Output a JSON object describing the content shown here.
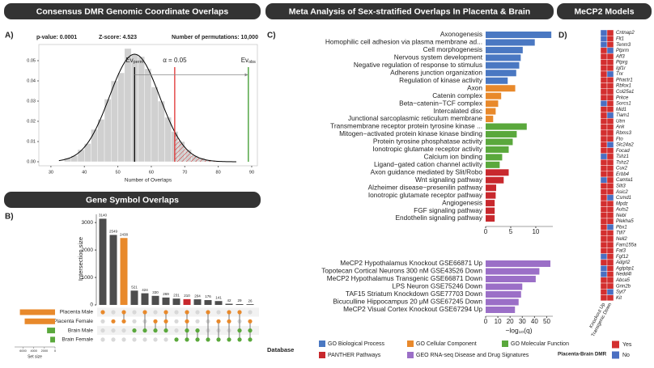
{
  "chart_data": [
    {
      "type": "histogram",
      "panel_label": "A)",
      "header": "Consensus DMR Genomic Coordinate Overlaps",
      "stats": [
        "p-value:  0.0001",
        "Z-score:  4.523",
        "Number of permutations: 10,000"
      ],
      "bins": [
        34,
        36,
        38,
        40,
        42,
        44,
        46,
        48,
        50,
        52,
        54,
        56,
        58,
        60,
        62,
        64,
        66,
        68,
        70,
        72,
        74,
        76,
        78
      ],
      "values": [
        0.002,
        0.003,
        0.006,
        0.009,
        0.016,
        0.021,
        0.031,
        0.04,
        0.044,
        0.056,
        0.053,
        0.052,
        0.046,
        0.037,
        0.03,
        0.022,
        0.015,
        0.01,
        0.006,
        0.003,
        0.002,
        0.001
      ],
      "color": "#d0d0d0",
      "curve": {
        "mean": 55,
        "sd": 7.5,
        "color": "#000000"
      },
      "annotations": [
        {
          "text": "Ev",
          "subscript": "perm",
          "x": 55,
          "color": "#000000"
        },
        {
          "text": "α = 0.05",
          "x": 67,
          "color": "#e03030"
        },
        {
          "text": "Ev",
          "subscript": "obs",
          "x": 89,
          "color": "#3a9a2a"
        }
      ],
      "xlabel": "Number of Overlaps",
      "xlim": [
        26.4,
        91.7
      ],
      "xticks": [
        30,
        40,
        50,
        60,
        70,
        80,
        90
      ],
      "ylim": [
        -0.002,
        0.058
      ],
      "yticks": [
        {
          "value": 0,
          "label": "0.00"
        },
        {
          "value": 0.01,
          "label": "0.01"
        },
        {
          "value": 0.02,
          "label": "0.02"
        },
        {
          "value": 0.03,
          "label": "0.03"
        },
        {
          "value": 0.04,
          "label": "0.04"
        },
        {
          "value": 0.05,
          "label": "0.05"
        }
      ]
    },
    {
      "type": "upset",
      "panel_label": "B)",
      "header": "Gene Symbol Overlaps",
      "ylabel": "Intersection size",
      "values": [
        3140,
        2549,
        2438,
        521,
        424,
        330,
        269,
        231,
        210,
        204,
        176,
        141,
        42,
        29,
        26
      ],
      "colors": [
        "#4d4d4d",
        "#4d4d4d",
        "#e8892b",
        "#4d4d4d",
        "#4d4d4d",
        "#4d4d4d",
        "#4d4d4d",
        "#4d4d4d",
        "#c8282d",
        "#4d4d4d",
        "#4d4d4d",
        "#4d4d4d",
        "#4d4d4d",
        "#4d4d4d",
        "#4d4d4d"
      ],
      "intersections": [
        [
          0
        ],
        [
          1
        ],
        [
          0,
          1
        ],
        [
          2
        ],
        [
          0,
          2
        ],
        [
          1,
          2
        ],
        [
          0,
          1,
          2
        ],
        [
          3
        ],
        [
          0,
          1,
          2,
          3
        ],
        [
          2,
          3
        ],
        [
          0,
          3
        ],
        [
          1,
          3
        ],
        [
          0,
          1,
          3
        ],
        [
          0,
          2,
          3
        ],
        [
          1,
          2,
          3
        ]
      ],
      "ylim": [
        0,
        3300
      ],
      "yticks": [
        0,
        1000,
        2000,
        3000
      ],
      "sets": [
        "Placenta Male",
        "Placenta Female",
        "Brain Male",
        "Brain Female"
      ],
      "set_sizes": [
        6600,
        5700,
        1500,
        900
      ],
      "set_colors": [
        "#e8892b",
        "#e8892b",
        "#5aa83c",
        "#5aa83c"
      ],
      "set_size_label": "Set size",
      "set_size_xlim": [
        0,
        7600
      ],
      "set_size_xticks": [
        6000,
        4000,
        2000,
        0
      ]
    },
    {
      "type": "hbar",
      "panel_label": "C)",
      "header": "Meta Analysis of Sex-stratified Overlaps In Placenta & Brain",
      "subplots": [
        {
          "categories": [
            "Axonogenesis",
            "Homophilic cell adhesion via plasma membrane ad...",
            "Cell morphogenesis",
            "Nervous system development",
            "Negative regulation of response to stimulus",
            "Adherens junction organization",
            "Regulation of kinase activity",
            "Axon",
            "Catenin complex",
            "Beta−catenin−TCF complex",
            "Intercalated disc",
            "Junctional sarcoplasmic reticulum membrane",
            "Transmembrane receptor protein tyrosine kinase ...",
            "Mitogen−activated protein kinase kinase binding",
            "Protein tyrosine phosphatase activity",
            "Ionotropic glutamate receptor activity",
            "Calcium ion binding",
            "Ligand−gated cation channel activity",
            "Axon guidance mediated by Slit/Robo",
            "Wnt signaling pathway",
            "Alzheimer disease−presenilin pathway",
            "Ionotropic glutamate receptor pathway",
            "Angiogenesis",
            "FGF signaling pathway",
            "Endothelin signaling pathway"
          ],
          "values": [
            13.1,
            9.8,
            7.4,
            7.0,
            6.7,
            6.1,
            4.4,
            5.9,
            3.1,
            2.5,
            2.0,
            1.5,
            8.2,
            6.2,
            5.4,
            4.6,
            3.3,
            2.8,
            4.6,
            3.6,
            2.1,
            2.0,
            1.8,
            1.8,
            1.8
          ],
          "database": [
            0,
            0,
            0,
            0,
            0,
            0,
            0,
            1,
            1,
            1,
            1,
            1,
            2,
            2,
            2,
            2,
            2,
            2,
            3,
            3,
            3,
            3,
            3,
            3,
            3
          ],
          "xlim": [
            0,
            13.4
          ],
          "xticks": [
            0,
            5,
            10
          ]
        },
        {
          "categories": [
            "MeCP2 Hypothalamus Knockout GSE66871 Up",
            "Topotecan Cortical Neurons 300 nM GSE43526 Down",
            "MeCP2 Hypothalamus Transgenic GSE66871 Down",
            "LPS Neuron GSE75246 Down",
            "TAF15 Striatum Knockdown GSE77703 Down",
            "Bicuculline Hippocampus 20 μM GSE67245 Down",
            "MeCP2 Visual Cortex Knockout GSE67294 Up"
          ],
          "values": [
            53,
            44,
            41,
            30,
            29,
            27,
            24
          ],
          "database": [
            4,
            4,
            4,
            4,
            4,
            4,
            4
          ],
          "xlim": [
            0,
            55
          ],
          "xticks": [
            0,
            10,
            20,
            30,
            40,
            50
          ]
        }
      ],
      "xlabel": "−log₁₀(q)",
      "legend": {
        "title": "Database",
        "items": [
          {
            "name": "GO Biological Process",
            "color": "#4a78c2"
          },
          {
            "name": "GO Cellular Component",
            "color": "#e8892b"
          },
          {
            "name": "GO Molecular Function",
            "color": "#5aa83c"
          },
          {
            "name": "PANTHER Pathways",
            "color": "#c8282d"
          },
          {
            "name": "GEO RNA-seq Disease and Drug Signatures",
            "color": "#9b6fc7"
          }
        ]
      }
    },
    {
      "type": "heatmap",
      "panel_label": "D)",
      "header": "MeCP2 Models",
      "rows": [
        "Cntnap2",
        "Flt1",
        "Tenm3",
        "Ptprm",
        "Aff3",
        "Ptprg",
        "Igf1r",
        "Tnr",
        "Phactr1",
        "Rbfox1",
        "Col25a1",
        "Prkce",
        "Sorcs1",
        "Mid1",
        "Tiam1",
        "Utrn",
        "Ank",
        "Rbms3",
        "Fto",
        "Slc24a2",
        "Focad",
        "Tshz1",
        "Tshz2",
        "Cux2",
        "Erbb4",
        "Camta1",
        "Slit3",
        "Asic2",
        "Csmd1",
        "Mpdz",
        "Auts2",
        "Nebl",
        "Plekha5",
        "Pbx1",
        "Ttll7",
        "Nell2",
        "Fam155a",
        "Fat3",
        "Fgf12",
        "Adgrl2",
        "Agtpbp1",
        "Nedd4l",
        "Abca5",
        "Grin2b",
        "Syt7",
        "Kit"
      ],
      "columns": [
        "Knockout Up",
        "Transgenic Down"
      ],
      "values": [
        [
          0,
          0,
          0,
          1,
          1,
          1,
          1,
          1,
          1,
          1,
          1,
          1,
          0,
          1,
          1,
          1,
          1,
          1,
          1,
          1,
          1,
          0,
          1,
          1,
          1,
          0,
          1,
          1,
          1,
          1,
          1,
          1,
          1,
          1,
          1,
          1,
          1,
          1,
          0,
          1,
          0,
          0,
          1,
          1,
          1,
          1
        ],
        [
          1,
          1,
          1,
          0,
          1,
          1,
          1,
          0,
          1,
          1,
          1,
          1,
          1,
          1,
          0,
          1,
          1,
          1,
          1,
          0,
          1,
          1,
          1,
          1,
          1,
          1,
          1,
          1,
          0,
          1,
          1,
          1,
          1,
          0,
          1,
          1,
          1,
          1,
          1,
          1,
          1,
          1,
          1,
          1,
          0,
          1
        ]
      ],
      "legend": {
        "title": "Placenta-Brain DMR",
        "levels": [
          {
            "label": "Yes",
            "value": 1,
            "color": "#d32f2f"
          },
          {
            "label": "No",
            "value": 0,
            "color": "#4a6fc2"
          }
        ]
      }
    }
  ]
}
